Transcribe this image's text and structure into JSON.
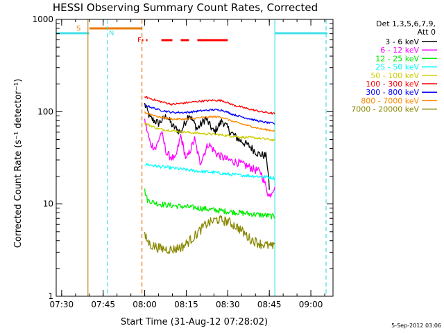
{
  "chart_data": {
    "type": "line",
    "title": "HESSI Observing Summary Count Rates, Corrected",
    "xlabel": "Start Time (31-Aug-12 07:28:02)",
    "ylabel": "Corrected Count Rate (s⁻¹ detector⁻¹)",
    "yscale": "log",
    "ylim": [
      1,
      1000
    ],
    "yticks": [
      1,
      10,
      100,
      1000
    ],
    "ytick_labels": [
      "1",
      "10",
      "100",
      "1000"
    ],
    "xlim": [
      "07:28:02",
      "09:08:00"
    ],
    "xticks": [
      "07:30",
      "07:45",
      "08:00",
      "08:15",
      "08:30",
      "08:45",
      "09:00"
    ],
    "grid": false,
    "legend_position": "top-right",
    "legend_header": [
      "Det 1,3,5,6,7,9,",
      "Att 0"
    ],
    "footer": "5-Sep-2012 03:06",
    "colors": {
      "frame": "#000000",
      "background": "#ffffff",
      "night": "#40e0e8",
      "saa": "#e87800",
      "flare": "#ff0000",
      "vline": "#c88a20"
    },
    "status_labels": {
      "saa": "S",
      "night": "N",
      "flare": "F"
    },
    "night_intervals": [
      [
        "07:28:02",
        "07:40:00"
      ],
      [
        "08:47:00",
        "09:06:00"
      ]
    ],
    "saa_interval": [
      "07:40:00",
      "07:59:00"
    ],
    "flare_segments": [
      [
        "07:59:00",
        "07:59:30"
      ],
      [
        "08:00:30",
        "08:01:00"
      ],
      [
        "08:06:00",
        "08:10:00"
      ],
      [
        "08:13:00",
        "08:16:00"
      ],
      [
        "08:19:00",
        "08:30:00"
      ]
    ],
    "boundaries": [
      {
        "time": "07:39:30",
        "color": "#c88a20",
        "style": "solid"
      },
      {
        "time": "07:46:30",
        "color": "#40e0e8",
        "style": "dashed"
      },
      {
        "time": "07:59:00",
        "color": "#e87800",
        "style": "dashed"
      },
      {
        "time": "08:47:00",
        "color": "#40e0e8",
        "style": "solid"
      },
      {
        "time": "09:05:30",
        "color": "#40e0e8",
        "style": "dashed"
      }
    ],
    "series": [
      {
        "name": "3 - 6 keV",
        "color": "#000000",
        "noise": 0.1,
        "points": [
          [
            "08:00",
            120
          ],
          [
            "08:02",
            85
          ],
          [
            "08:05",
            75
          ],
          [
            "08:08",
            90
          ],
          [
            "08:10",
            70
          ],
          [
            "08:13",
            60
          ],
          [
            "08:16",
            95
          ],
          [
            "08:19",
            65
          ],
          [
            "08:22",
            85
          ],
          [
            "08:25",
            60
          ],
          [
            "08:28",
            80
          ],
          [
            "08:31",
            60
          ],
          [
            "08:34",
            50
          ],
          [
            "08:38",
            42
          ],
          [
            "08:41",
            35
          ],
          [
            "08:44",
            33
          ],
          [
            "08:45",
            15
          ]
        ]
      },
      {
        "name": "6 - 12 keV",
        "color": "#ff00ff",
        "noise": 0.1,
        "points": [
          [
            "08:00",
            80
          ],
          [
            "08:02",
            45
          ],
          [
            "08:04",
            40
          ],
          [
            "08:06",
            60
          ],
          [
            "08:08",
            35
          ],
          [
            "08:11",
            30
          ],
          [
            "08:13",
            55
          ],
          [
            "08:15",
            30
          ],
          [
            "08:18",
            50
          ],
          [
            "08:20",
            28
          ],
          [
            "08:23",
            45
          ],
          [
            "08:26",
            35
          ],
          [
            "08:30",
            30
          ],
          [
            "08:34",
            28
          ],
          [
            "08:38",
            25
          ],
          [
            "08:42",
            22
          ],
          [
            "08:45",
            12
          ],
          [
            "08:47",
            16
          ]
        ]
      },
      {
        "name": "12 - 25 keV",
        "color": "#00ee00",
        "noise": 0.07,
        "points": [
          [
            "08:00",
            14
          ],
          [
            "08:01",
            11
          ],
          [
            "08:05",
            10
          ],
          [
            "08:10",
            9.6
          ],
          [
            "08:15",
            9.3
          ],
          [
            "08:20",
            9.0
          ],
          [
            "08:25",
            8.6
          ],
          [
            "08:30",
            8.3
          ],
          [
            "08:35",
            8.0
          ],
          [
            "08:40",
            7.7
          ],
          [
            "08:44",
            7.5
          ],
          [
            "08:47",
            7.3
          ]
        ]
      },
      {
        "name": "25 - 50 keV",
        "color": "#00ffff",
        "noise": 0.04,
        "points": [
          [
            "08:00",
            27
          ],
          [
            "08:05",
            25.5
          ],
          [
            "08:10",
            24.5
          ],
          [
            "08:15",
            23.5
          ],
          [
            "08:20",
            22.5
          ],
          [
            "08:25",
            22
          ],
          [
            "08:30",
            21
          ],
          [
            "08:35",
            20.5
          ],
          [
            "08:40",
            20
          ],
          [
            "08:45",
            19.5
          ],
          [
            "08:47",
            19
          ]
        ]
      },
      {
        "name": "50 - 100 keV",
        "color": "#cccc00",
        "noise": 0.03,
        "points": [
          [
            "08:00",
            75
          ],
          [
            "08:05",
            65
          ],
          [
            "08:10",
            62
          ],
          [
            "08:15",
            60
          ],
          [
            "08:20",
            58
          ],
          [
            "08:25",
            57
          ],
          [
            "08:30",
            55
          ],
          [
            "08:35",
            53
          ],
          [
            "08:40",
            52
          ],
          [
            "08:45",
            50
          ],
          [
            "08:47",
            49
          ]
        ]
      },
      {
        "name": "100 - 300 keV",
        "color": "#ff0000",
        "noise": 0.025,
        "points": [
          [
            "08:00",
            145
          ],
          [
            "08:05",
            130
          ],
          [
            "08:10",
            120
          ],
          [
            "08:15",
            125
          ],
          [
            "08:20",
            130
          ],
          [
            "08:25",
            133
          ],
          [
            "08:28",
            132
          ],
          [
            "08:32",
            118
          ],
          [
            "08:37",
            108
          ],
          [
            "08:42",
            100
          ],
          [
            "08:47",
            95
          ]
        ]
      },
      {
        "name": "300 - 800 keV",
        "color": "#0000ff",
        "noise": 0.025,
        "points": [
          [
            "08:00",
            118
          ],
          [
            "08:05",
            105
          ],
          [
            "08:10",
            98
          ],
          [
            "08:15",
            98
          ],
          [
            "08:20",
            102
          ],
          [
            "08:25",
            105
          ],
          [
            "08:28",
            104
          ],
          [
            "08:32",
            93
          ],
          [
            "08:37",
            85
          ],
          [
            "08:42",
            78
          ],
          [
            "08:47",
            74
          ]
        ]
      },
      {
        "name": "800 - 7000 keV",
        "color": "#ff8800",
        "noise": 0.025,
        "points": [
          [
            "08:00",
            98
          ],
          [
            "08:05",
            88
          ],
          [
            "08:10",
            83
          ],
          [
            "08:15",
            83
          ],
          [
            "08:20",
            86
          ],
          [
            "08:25",
            88
          ],
          [
            "08:28",
            87
          ],
          [
            "08:32",
            78
          ],
          [
            "08:37",
            71
          ],
          [
            "08:42",
            65
          ],
          [
            "08:47",
            62
          ]
        ]
      },
      {
        "name": "7000 - 20000 keV",
        "color": "#888800",
        "noise": 0.12,
        "points": [
          [
            "08:00",
            4.5
          ],
          [
            "08:02",
            3.6
          ],
          [
            "08:06",
            3.3
          ],
          [
            "08:10",
            3.2
          ],
          [
            "08:14",
            3.5
          ],
          [
            "08:18",
            4.5
          ],
          [
            "08:22",
            6.0
          ],
          [
            "08:26",
            6.8
          ],
          [
            "08:30",
            6.5
          ],
          [
            "08:34",
            5.5
          ],
          [
            "08:38",
            4.2
          ],
          [
            "08:42",
            3.7
          ],
          [
            "08:47",
            3.4
          ]
        ]
      }
    ]
  }
}
